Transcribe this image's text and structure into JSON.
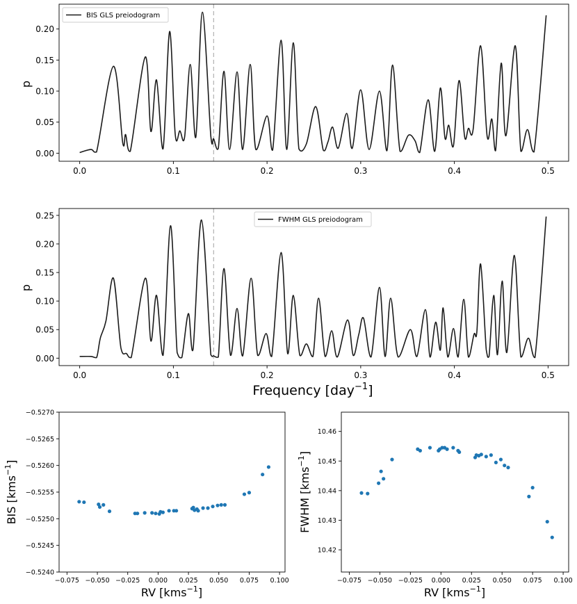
{
  "chart_data": [
    {
      "type": "line",
      "title": "",
      "legend": "BIS GLS preiodogram",
      "legend_position": "top-left",
      "xlabel": "",
      "ylabel": "p",
      "xlim": [
        -0.022,
        0.522
      ],
      "ylim": [
        -0.013,
        0.24
      ],
      "xticks": [
        0.0,
        0.1,
        0.2,
        0.3,
        0.4,
        0.5
      ],
      "xtick_labels": [
        "0.0",
        "0.1",
        "0.2",
        "0.3",
        "0.4",
        "0.5"
      ],
      "yticks": [
        0.0,
        0.05,
        0.1,
        0.15,
        0.2
      ],
      "ytick_labels": [
        "0.00",
        "0.05",
        "0.10",
        "0.15",
        "0.20"
      ],
      "marker_line_x": 0.143,
      "peaks": [
        [
          0.0,
          0.001
        ],
        [
          0.012,
          0.006
        ],
        [
          0.018,
          0.002
        ],
        [
          0.036,
          0.14
        ],
        [
          0.046,
          0.016
        ],
        [
          0.049,
          0.03
        ],
        [
          0.054,
          0.003
        ],
        [
          0.07,
          0.155
        ],
        [
          0.076,
          0.035
        ],
        [
          0.082,
          0.118
        ],
        [
          0.089,
          0.007
        ],
        [
          0.096,
          0.196
        ],
        [
          0.102,
          0.03
        ],
        [
          0.107,
          0.036
        ],
        [
          0.112,
          0.026
        ],
        [
          0.118,
          0.143
        ],
        [
          0.124,
          0.026
        ],
        [
          0.131,
          0.227
        ],
        [
          0.14,
          0.027
        ],
        [
          0.143,
          0.023
        ],
        [
          0.148,
          0.008
        ],
        [
          0.154,
          0.132
        ],
        [
          0.16,
          0.006
        ],
        [
          0.168,
          0.131
        ],
        [
          0.174,
          0.006
        ],
        [
          0.182,
          0.143
        ],
        [
          0.188,
          0.006
        ],
        [
          0.2,
          0.06
        ],
        [
          0.206,
          0.005
        ],
        [
          0.215,
          0.182
        ],
        [
          0.221,
          0.006
        ],
        [
          0.228,
          0.178
        ],
        [
          0.234,
          0.007
        ],
        [
          0.242,
          0.015
        ],
        [
          0.252,
          0.075
        ],
        [
          0.26,
          0.005
        ],
        [
          0.265,
          0.018
        ],
        [
          0.27,
          0.042
        ],
        [
          0.276,
          0.008
        ],
        [
          0.285,
          0.064
        ],
        [
          0.291,
          0.008
        ],
        [
          0.3,
          0.102
        ],
        [
          0.309,
          0.006
        ],
        [
          0.32,
          0.1
        ],
        [
          0.328,
          0.004
        ],
        [
          0.334,
          0.142
        ],
        [
          0.342,
          0.003
        ],
        [
          0.351,
          0.029
        ],
        [
          0.358,
          0.02
        ],
        [
          0.363,
          0.001
        ],
        [
          0.372,
          0.086
        ],
        [
          0.379,
          0.003
        ],
        [
          0.385,
          0.105
        ],
        [
          0.39,
          0.024
        ],
        [
          0.394,
          0.045
        ],
        [
          0.399,
          0.012
        ],
        [
          0.405,
          0.117
        ],
        [
          0.411,
          0.026
        ],
        [
          0.415,
          0.04
        ],
        [
          0.42,
          0.038
        ],
        [
          0.428,
          0.173
        ],
        [
          0.435,
          0.027
        ],
        [
          0.44,
          0.055
        ],
        [
          0.444,
          0.004
        ],
        [
          0.45,
          0.145
        ],
        [
          0.455,
          0.028
        ],
        [
          0.465,
          0.173
        ],
        [
          0.471,
          0.003
        ],
        [
          0.478,
          0.038
        ],
        [
          0.485,
          0.002
        ],
        [
          0.498,
          0.222
        ]
      ]
    },
    {
      "type": "line",
      "title": "",
      "legend": "FWHM GLS preiodogram",
      "legend_position": "top-center",
      "xlabel": "Frequency [day",
      "xlabel_sup": "−1",
      "xlabel_end": "]",
      "ylabel": "p",
      "xlim": [
        -0.022,
        0.522
      ],
      "ylim": [
        -0.013,
        0.262
      ],
      "xticks": [
        0.0,
        0.1,
        0.2,
        0.3,
        0.4,
        0.5
      ],
      "xtick_labels": [
        "0.0",
        "0.1",
        "0.2",
        "0.3",
        "0.4",
        "0.5"
      ],
      "yticks": [
        0.0,
        0.05,
        0.1,
        0.15,
        0.2,
        0.25
      ],
      "ytick_labels": [
        "0.00",
        "0.05",
        "0.10",
        "0.15",
        "0.20",
        "0.25"
      ],
      "marker_line_x": 0.143,
      "peaks": [
        [
          0.0,
          0.003
        ],
        [
          0.012,
          0.003
        ],
        [
          0.018,
          0.001
        ],
        [
          0.022,
          0.035
        ],
        [
          0.028,
          0.065
        ],
        [
          0.036,
          0.14
        ],
        [
          0.044,
          0.018
        ],
        [
          0.05,
          0.008
        ],
        [
          0.055,
          0.001
        ],
        [
          0.07,
          0.14
        ],
        [
          0.076,
          0.03
        ],
        [
          0.082,
          0.11
        ],
        [
          0.089,
          0.005
        ],
        [
          0.097,
          0.232
        ],
        [
          0.104,
          0.01
        ],
        [
          0.109,
          0.001
        ],
        [
          0.116,
          0.078
        ],
        [
          0.121,
          0.015
        ],
        [
          0.13,
          0.242
        ],
        [
          0.14,
          0.006
        ],
        [
          0.143,
          0.004
        ],
        [
          0.148,
          0.002
        ],
        [
          0.154,
          0.157
        ],
        [
          0.161,
          0.005
        ],
        [
          0.168,
          0.087
        ],
        [
          0.174,
          0.004
        ],
        [
          0.183,
          0.14
        ],
        [
          0.19,
          0.005
        ],
        [
          0.199,
          0.043
        ],
        [
          0.205,
          0.003
        ],
        [
          0.215,
          0.185
        ],
        [
          0.222,
          0.008
        ],
        [
          0.228,
          0.11
        ],
        [
          0.235,
          0.005
        ],
        [
          0.242,
          0.025
        ],
        [
          0.249,
          0.003
        ],
        [
          0.255,
          0.105
        ],
        [
          0.262,
          0.003
        ],
        [
          0.269,
          0.048
        ],
        [
          0.275,
          0.002
        ],
        [
          0.286,
          0.067
        ],
        [
          0.292,
          0.005
        ],
        [
          0.298,
          0.042
        ],
        [
          0.303,
          0.07
        ],
        [
          0.311,
          0.002
        ],
        [
          0.32,
          0.124
        ],
        [
          0.326,
          0.003
        ],
        [
          0.332,
          0.105
        ],
        [
          0.34,
          0.002
        ],
        [
          0.353,
          0.05
        ],
        [
          0.36,
          0.003
        ],
        [
          0.369,
          0.085
        ],
        [
          0.374,
          0.002
        ],
        [
          0.38,
          0.063
        ],
        [
          0.385,
          0.014
        ],
        [
          0.388,
          0.088
        ],
        [
          0.393,
          0.002
        ],
        [
          0.399,
          0.052
        ],
        [
          0.404,
          0.002
        ],
        [
          0.41,
          0.103
        ],
        [
          0.415,
          0.002
        ],
        [
          0.421,
          0.042
        ],
        [
          0.424,
          0.046
        ],
        [
          0.428,
          0.165
        ],
        [
          0.434,
          0.015
        ],
        [
          0.437,
          0.003
        ],
        [
          0.442,
          0.11
        ],
        [
          0.446,
          0.006
        ],
        [
          0.451,
          0.135
        ],
        [
          0.456,
          0.01
        ],
        [
          0.464,
          0.18
        ],
        [
          0.471,
          0.002
        ],
        [
          0.479,
          0.035
        ],
        [
          0.486,
          0.001
        ],
        [
          0.498,
          0.248
        ]
      ]
    },
    {
      "type": "scatter",
      "title": "",
      "xlabel": "RV [kms",
      "xlabel_sup": "−1",
      "xlabel_end": "]",
      "ylabel": "BIS [kms",
      "ylabel_sup": "−1",
      "ylabel_end": "]",
      "xlim": [
        -0.0815,
        0.1045
      ],
      "ylim": [
        -0.524,
        -0.527
      ],
      "y_inverted": true,
      "xticks": [
        -0.075,
        -0.05,
        -0.025,
        0.0,
        0.025,
        0.05,
        0.075,
        0.1
      ],
      "xtick_labels": [
        "−0.075",
        "−0.050",
        "−0.025",
        "0.000",
        "0.025",
        "0.050",
        "0.075",
        "0.100"
      ],
      "yticks": [
        -0.524,
        -0.5245,
        -0.525,
        -0.5255,
        -0.526,
        -0.5265,
        -0.527
      ],
      "ytick_labels": [
        "−0.5240",
        "−0.5245",
        "−0.5250",
        "−0.5255",
        "−0.5260",
        "−0.5265",
        "−0.5270"
      ],
      "color": "#1f77b4",
      "points": [
        [
          -0.065,
          -0.52532
        ],
        [
          -0.061,
          -0.52531
        ],
        [
          -0.049,
          -0.52527
        ],
        [
          -0.048,
          -0.52522
        ],
        [
          -0.045,
          -0.52526
        ],
        [
          -0.04,
          -0.52514
        ],
        [
          -0.019,
          -0.5251
        ],
        [
          -0.017,
          -0.5251
        ],
        [
          -0.011,
          -0.52511
        ],
        [
          -0.005,
          -0.52511
        ],
        [
          -0.002,
          -0.5251
        ],
        [
          0.001,
          -0.52509
        ],
        [
          0.002,
          -0.52513
        ],
        [
          0.004,
          -0.52512
        ],
        [
          0.009,
          -0.52515
        ],
        [
          0.013,
          -0.52515
        ],
        [
          0.015,
          -0.52515
        ],
        [
          0.028,
          -0.52519
        ],
        [
          0.029,
          -0.52521
        ],
        [
          0.03,
          -0.52516
        ],
        [
          0.032,
          -0.52518
        ],
        [
          0.033,
          -0.52515
        ],
        [
          0.037,
          -0.5252
        ],
        [
          0.041,
          -0.5252
        ],
        [
          0.045,
          -0.52523
        ],
        [
          0.049,
          -0.52525
        ],
        [
          0.052,
          -0.52526
        ],
        [
          0.055,
          -0.52526
        ],
        [
          0.071,
          -0.52546
        ],
        [
          0.075,
          -0.52549
        ],
        [
          0.086,
          -0.52583
        ],
        [
          0.091,
          -0.52597
        ]
      ]
    },
    {
      "type": "scatter",
      "title": "",
      "xlabel": "RV [kms",
      "xlabel_sup": "−1",
      "xlabel_end": "]",
      "ylabel": "FWHM [kms",
      "ylabel_sup": "−1",
      "ylabel_end": "]",
      "xlim": [
        -0.0815,
        0.1045
      ],
      "ylim": [
        10.4125,
        10.4665
      ],
      "xticks": [
        -0.075,
        -0.05,
        -0.025,
        0.0,
        0.025,
        0.05,
        0.075,
        0.1
      ],
      "xtick_labels": [
        "−0.075",
        "−0.050",
        "−0.025",
        "0.000",
        "0.025",
        "0.050",
        "0.075",
        "0.100"
      ],
      "yticks": [
        10.42,
        10.43,
        10.44,
        10.45,
        10.46
      ],
      "ytick_labels": [
        "10.42",
        "10.43",
        "10.44",
        "10.45",
        "10.46"
      ],
      "color": "#1f77b4",
      "points": [
        [
          -0.065,
          10.4392
        ],
        [
          -0.06,
          10.439
        ],
        [
          -0.051,
          10.4425
        ],
        [
          -0.049,
          10.4465
        ],
        [
          -0.047,
          10.444
        ],
        [
          -0.04,
          10.4505
        ],
        [
          -0.019,
          10.454
        ],
        [
          -0.017,
          10.4535
        ],
        [
          -0.009,
          10.4545
        ],
        [
          -0.002,
          10.4535
        ],
        [
          -0.001,
          10.454
        ],
        [
          0.001,
          10.4545
        ],
        [
          0.003,
          10.4545
        ],
        [
          0.005,
          10.454
        ],
        [
          0.01,
          10.4545
        ],
        [
          0.014,
          10.4535
        ],
        [
          0.015,
          10.453
        ],
        [
          0.028,
          10.4512
        ],
        [
          0.029,
          10.452
        ],
        [
          0.031,
          10.4518
        ],
        [
          0.033,
          10.4522
        ],
        [
          0.037,
          10.4515
        ],
        [
          0.041,
          10.452
        ],
        [
          0.045,
          10.4495
        ],
        [
          0.049,
          10.4505
        ],
        [
          0.052,
          10.4485
        ],
        [
          0.055,
          10.4478
        ],
        [
          0.072,
          10.438
        ],
        [
          0.075,
          10.441
        ],
        [
          0.087,
          10.4295
        ],
        [
          0.091,
          10.4242
        ]
      ]
    }
  ]
}
